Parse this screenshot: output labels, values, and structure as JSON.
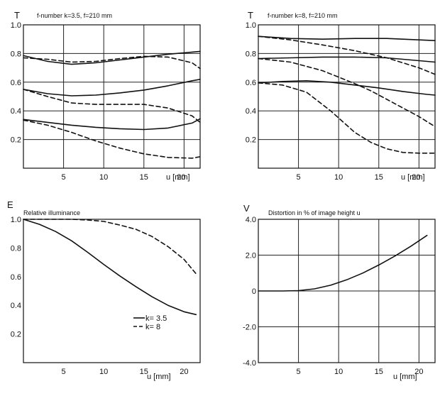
{
  "chart_data": [
    {
      "type": "line",
      "title": "f-number k=3.5, f=210 mm",
      "ylabel": "T",
      "xlabel": "u [mm]",
      "xlim": [
        0,
        22
      ],
      "ylim": [
        0,
        1.0
      ],
      "xticks": [
        "5",
        "10",
        "15",
        "20"
      ],
      "yticks": [
        "0.2",
        "0.4",
        "0.6",
        "0.8",
        "1.0"
      ],
      "grid": true,
      "series": [
        {
          "style": "solid",
          "x": [
            0,
            3,
            6,
            9,
            12,
            15,
            18,
            21,
            22
          ],
          "y": [
            0.785,
            0.745,
            0.725,
            0.735,
            0.755,
            0.775,
            0.795,
            0.81,
            0.815
          ]
        },
        {
          "style": "dashed",
          "x": [
            0,
            3,
            6,
            9,
            12,
            15,
            18,
            21,
            22
          ],
          "y": [
            0.77,
            0.76,
            0.74,
            0.745,
            0.765,
            0.78,
            0.775,
            0.735,
            0.695
          ]
        },
        {
          "style": "solid",
          "x": [
            0,
            3,
            6,
            9,
            12,
            15,
            18,
            21,
            22
          ],
          "y": [
            0.55,
            0.52,
            0.505,
            0.51,
            0.525,
            0.545,
            0.575,
            0.61,
            0.62
          ]
        },
        {
          "style": "dashed",
          "x": [
            0,
            3,
            6,
            9,
            12,
            15,
            18,
            21,
            22
          ],
          "y": [
            0.55,
            0.5,
            0.455,
            0.445,
            0.445,
            0.445,
            0.42,
            0.365,
            0.32
          ]
        },
        {
          "style": "solid",
          "x": [
            0,
            3,
            6,
            9,
            12,
            15,
            18,
            21,
            22
          ],
          "y": [
            0.34,
            0.32,
            0.3,
            0.285,
            0.275,
            0.27,
            0.28,
            0.315,
            0.345
          ]
        },
        {
          "style": "dashed",
          "x": [
            0,
            3,
            6,
            9,
            12,
            15,
            18,
            21,
            22
          ],
          "y": [
            0.335,
            0.3,
            0.25,
            0.19,
            0.14,
            0.1,
            0.075,
            0.07,
            0.08
          ]
        }
      ]
    },
    {
      "type": "line",
      "title": "f-number k=8, f=210 mm",
      "ylabel": "T",
      "xlabel": "u [mm]",
      "xlim": [
        0,
        22
      ],
      "ylim": [
        0,
        1.0
      ],
      "xticks": [
        "5",
        "10",
        "15",
        "20"
      ],
      "yticks": [
        "0.2",
        "0.4",
        "0.6",
        "0.8",
        "1.0"
      ],
      "grid": true,
      "series": [
        {
          "style": "solid",
          "x": [
            0,
            4,
            8,
            12,
            16,
            20,
            22
          ],
          "y": [
            0.92,
            0.905,
            0.9,
            0.905,
            0.905,
            0.895,
            0.89
          ]
        },
        {
          "style": "dashed",
          "x": [
            0,
            4,
            8,
            12,
            16,
            20,
            22
          ],
          "y": [
            0.92,
            0.895,
            0.86,
            0.82,
            0.77,
            0.7,
            0.655
          ]
        },
        {
          "style": "solid",
          "x": [
            0,
            4,
            8,
            12,
            16,
            20,
            22
          ],
          "y": [
            0.765,
            0.77,
            0.775,
            0.775,
            0.77,
            0.75,
            0.74
          ]
        },
        {
          "style": "dashed",
          "x": [
            0,
            4,
            8,
            12,
            14,
            16,
            20,
            22
          ],
          "y": [
            0.765,
            0.74,
            0.68,
            0.59,
            0.54,
            0.48,
            0.36,
            0.29
          ]
        },
        {
          "style": "solid",
          "x": [
            0,
            3,
            6,
            9,
            12,
            15,
            18,
            21,
            22
          ],
          "y": [
            0.595,
            0.605,
            0.61,
            0.6,
            0.58,
            0.56,
            0.535,
            0.515,
            0.51
          ]
        },
        {
          "style": "dashed",
          "x": [
            0,
            3,
            6,
            9,
            12,
            14,
            16,
            18,
            20,
            22
          ],
          "y": [
            0.595,
            0.58,
            0.53,
            0.4,
            0.25,
            0.18,
            0.135,
            0.11,
            0.105,
            0.105
          ]
        }
      ]
    },
    {
      "type": "line",
      "title": "Relative illuminance",
      "ylabel": "E",
      "xlabel": "u [mm]",
      "xlim": [
        0,
        22
      ],
      "ylim": [
        0,
        1.0
      ],
      "xticks": [
        "5",
        "10",
        "15",
        "20"
      ],
      "yticks": [
        "0.2",
        "0.4",
        "0.6",
        "0.8",
        "1.0"
      ],
      "grid": false,
      "legend": [
        {
          "label": "k= 3.5",
          "style": "solid"
        },
        {
          "label": "k= 8",
          "style": "dashed"
        }
      ],
      "series": [
        {
          "name": "k= 3.5",
          "style": "solid",
          "x": [
            0,
            2,
            4,
            6,
            8,
            10,
            12,
            14,
            16,
            18,
            20,
            21.5
          ],
          "y": [
            1.0,
            0.965,
            0.915,
            0.85,
            0.77,
            0.685,
            0.605,
            0.53,
            0.46,
            0.4,
            0.355,
            0.335
          ]
        },
        {
          "name": "k= 8",
          "style": "dashed",
          "x": [
            0,
            2,
            4,
            6,
            8,
            10,
            12,
            14,
            16,
            18,
            20,
            21.5
          ],
          "y": [
            1.0,
            1.0,
            1.0,
            1.0,
            0.995,
            0.985,
            0.96,
            0.93,
            0.88,
            0.81,
            0.72,
            0.62
          ]
        }
      ]
    },
    {
      "type": "line",
      "title": "Distortion in % of image height u",
      "ylabel": "V",
      "xlabel": "u [mm]",
      "xlim": [
        0,
        22
      ],
      "ylim": [
        -4.0,
        4.0
      ],
      "xticks": [
        "5",
        "10",
        "15",
        "20"
      ],
      "yticks": [
        "-4.0",
        "-2.0",
        "0",
        "2.0",
        "4.0"
      ],
      "grid": true,
      "series": [
        {
          "style": "solid",
          "x": [
            0,
            3,
            5,
            7,
            9,
            11,
            13,
            15,
            17,
            19,
            21
          ],
          "y": [
            0,
            0,
            0.02,
            0.12,
            0.32,
            0.62,
            1.0,
            1.45,
            1.95,
            2.5,
            3.1
          ]
        }
      ]
    }
  ]
}
